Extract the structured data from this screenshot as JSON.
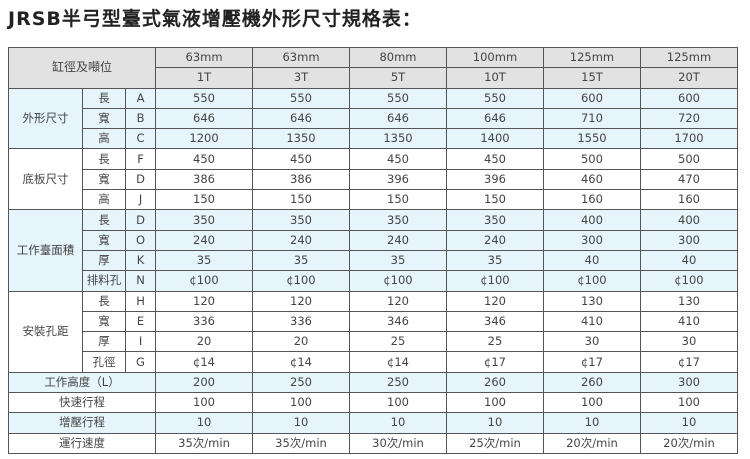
{
  "title": "JRSB半弓型臺式氣液增壓機外形尺寸規格表：",
  "header": {
    "label": "缸徑及噸位",
    "bores": [
      "63mm",
      "63mm",
      "80mm",
      "100mm",
      "125mm",
      "125mm"
    ],
    "tons": [
      "1T",
      "3T",
      "5T",
      "10T",
      "15T",
      "20T"
    ]
  },
  "groups": [
    {
      "name": "外形尺寸",
      "shade": "#e6f4fc",
      "rows": [
        {
          "sub": "長",
          "code": "A",
          "values": [
            "550",
            "550",
            "550",
            "550",
            "600",
            "600"
          ]
        },
        {
          "sub": "寬",
          "code": "B",
          "values": [
            "646",
            "646",
            "646",
            "646",
            "710",
            "720"
          ]
        },
        {
          "sub": "高",
          "code": "C",
          "values": [
            "1200",
            "1350",
            "1350",
            "1400",
            "1550",
            "1700"
          ]
        }
      ]
    },
    {
      "name": "底板尺寸",
      "shade": "#ffffff",
      "rows": [
        {
          "sub": "長",
          "code": "F",
          "values": [
            "450",
            "450",
            "450",
            "450",
            "500",
            "500"
          ]
        },
        {
          "sub": "寬",
          "code": "D",
          "values": [
            "386",
            "386",
            "396",
            "396",
            "460",
            "470"
          ]
        },
        {
          "sub": "高",
          "code": "J",
          "values": [
            "150",
            "150",
            "150",
            "150",
            "160",
            "160"
          ]
        }
      ]
    },
    {
      "name": "工作臺面積",
      "shade": "#e6f4fc",
      "rows": [
        {
          "sub": "長",
          "code": "D",
          "values": [
            "350",
            "350",
            "350",
            "350",
            "400",
            "400"
          ]
        },
        {
          "sub": "寬",
          "code": "O",
          "values": [
            "240",
            "240",
            "240",
            "240",
            "300",
            "300"
          ]
        },
        {
          "sub": "厚",
          "code": "K",
          "values": [
            "35",
            "35",
            "35",
            "35",
            "40",
            "40"
          ]
        },
        {
          "sub": "排料孔",
          "code": "N",
          "values": [
            "¢100",
            "¢100",
            "¢100",
            "¢100",
            "¢100",
            "¢100"
          ]
        }
      ]
    },
    {
      "name": "安裝孔距",
      "shade": "#ffffff",
      "rows": [
        {
          "sub": "長",
          "code": "H",
          "values": [
            "120",
            "120",
            "120",
            "120",
            "130",
            "130"
          ]
        },
        {
          "sub": "寬",
          "code": "E",
          "values": [
            "336",
            "336",
            "346",
            "346",
            "410",
            "410"
          ]
        },
        {
          "sub": "厚",
          "code": "I",
          "values": [
            "20",
            "20",
            "25",
            "25",
            "30",
            "30"
          ]
        },
        {
          "sub": "孔徑",
          "code": "G",
          "values": [
            "¢14",
            "¢14",
            "¢14",
            "¢17",
            "¢17",
            "¢17"
          ]
        }
      ]
    }
  ],
  "extra_rows": [
    {
      "name": "工作高度（L）",
      "shade": "#e6f4fc",
      "values": [
        "200",
        "250",
        "250",
        "260",
        "260",
        "300"
      ]
    },
    {
      "name": "快速行程",
      "shade": "#ffffff",
      "values": [
        "100",
        "100",
        "100",
        "100",
        "100",
        "100"
      ]
    },
    {
      "name": "增壓行程",
      "shade": "#e6f4fc",
      "values": [
        "10",
        "10",
        "10",
        "10",
        "10",
        "10"
      ]
    },
    {
      "name": "運行速度",
      "shade": "#ffffff",
      "values": [
        "35次/min",
        "35次/min",
        "30次/min",
        "25次/min",
        "20次/min",
        "20次/min"
      ]
    }
  ]
}
